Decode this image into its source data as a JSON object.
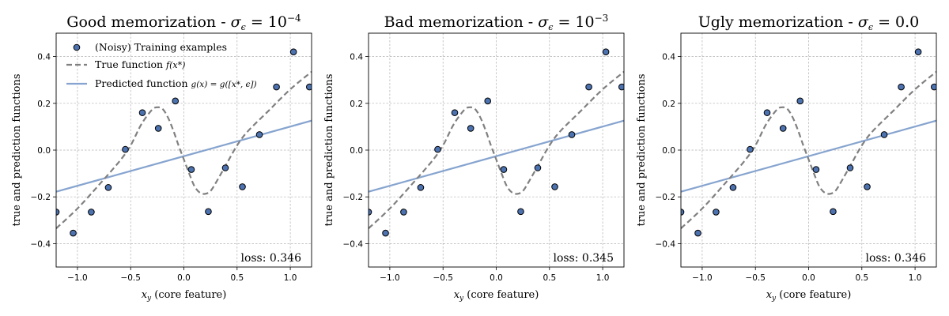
{
  "chart_data": [
    {
      "type": "scatter",
      "title": "Good memorization - ",
      "title_math": "σ",
      "title_math_sub": "ϵ",
      "title_math_rest": " = 10",
      "title_math_sup": "−4",
      "xlabel_math": "x",
      "xlabel_math_sub": "y",
      "xlabel": " (core feature)",
      "ylabel": "true and prediction functions",
      "xlim": [
        -1.2,
        1.2
      ],
      "ylim": [
        -0.5,
        0.5
      ],
      "xticks": [
        "−1.0",
        "−0.5",
        "0.0",
        "0.5",
        "1.0"
      ],
      "xtick_values": [
        -1.0,
        -0.5,
        0.0,
        0.5,
        1.0
      ],
      "yticks": [
        "−0.4",
        "−0.2",
        "0.0",
        "0.2",
        "0.4"
      ],
      "ytick_values": [
        -0.4,
        -0.2,
        0.0,
        0.2,
        0.4
      ],
      "loss_text": "loss: 0.346",
      "show_legend": true,
      "legend_position": "top-left",
      "grid": true,
      "training_points": [
        [
          -1.2,
          -0.265
        ],
        [
          -1.04,
          -0.355
        ],
        [
          -0.87,
          -0.265
        ],
        [
          -0.71,
          -0.16
        ],
        [
          -0.55,
          0.003
        ],
        [
          -0.39,
          0.16
        ],
        [
          -0.24,
          0.093
        ],
        [
          -0.08,
          0.21
        ],
        [
          0.07,
          -0.083
        ],
        [
          0.23,
          -0.263
        ],
        [
          0.39,
          -0.076
        ],
        [
          0.55,
          -0.157
        ],
        [
          0.71,
          0.066
        ],
        [
          0.87,
          0.27
        ],
        [
          1.03,
          0.42
        ],
        [
          1.18,
          0.27
        ]
      ],
      "true_function_samples": [
        [
          -1.2,
          -0.335
        ],
        [
          -1.0,
          -0.25
        ],
        [
          -0.8,
          -0.15
        ],
        [
          -0.6,
          -0.045
        ],
        [
          -0.5,
          0.02
        ],
        [
          -0.4,
          0.11
        ],
        [
          -0.3,
          0.172
        ],
        [
          -0.25,
          0.183
        ],
        [
          -0.2,
          0.176
        ],
        [
          -0.15,
          0.14
        ],
        [
          -0.1,
          0.085
        ],
        [
          -0.05,
          0.02
        ],
        [
          0.0,
          -0.04
        ],
        [
          0.05,
          -0.1
        ],
        [
          0.1,
          -0.155
        ],
        [
          0.15,
          -0.182
        ],
        [
          0.2,
          -0.187
        ],
        [
          0.25,
          -0.175
        ],
        [
          0.3,
          -0.14
        ],
        [
          0.4,
          -0.06
        ],
        [
          0.5,
          0.02
        ],
        [
          0.6,
          0.08
        ],
        [
          0.8,
          0.17
        ],
        [
          1.0,
          0.26
        ],
        [
          1.2,
          0.335
        ]
      ],
      "predicted_line": {
        "x": [
          -1.2,
          1.2
        ],
        "y": [
          -0.178,
          0.126
        ]
      }
    },
    {
      "type": "scatter",
      "title": "Bad memorization - ",
      "title_math": "σ",
      "title_math_sub": "ϵ",
      "title_math_rest": " = 10",
      "title_math_sup": "−3",
      "xlabel_math": "x",
      "xlabel_math_sub": "y",
      "xlabel": " (core feature)",
      "ylabel": "true and prediction functions",
      "xlim": [
        -1.2,
        1.2
      ],
      "ylim": [
        -0.5,
        0.5
      ],
      "xticks": [
        "−1.0",
        "−0.5",
        "0.0",
        "0.5",
        "1.0"
      ],
      "xtick_values": [
        -1.0,
        -0.5,
        0.0,
        0.5,
        1.0
      ],
      "yticks": [
        "−0.4",
        "−0.2",
        "0.0",
        "0.2",
        "0.4"
      ],
      "ytick_values": [
        -0.4,
        -0.2,
        0.0,
        0.2,
        0.4
      ],
      "loss_text": "loss: 0.345",
      "show_legend": false,
      "grid": true,
      "training_points": [
        [
          -1.2,
          -0.265
        ],
        [
          -1.04,
          -0.355
        ],
        [
          -0.87,
          -0.265
        ],
        [
          -0.71,
          -0.16
        ],
        [
          -0.55,
          0.003
        ],
        [
          -0.39,
          0.16
        ],
        [
          -0.24,
          0.093
        ],
        [
          -0.08,
          0.21
        ],
        [
          0.07,
          -0.083
        ],
        [
          0.23,
          -0.263
        ],
        [
          0.39,
          -0.076
        ],
        [
          0.55,
          -0.157
        ],
        [
          0.71,
          0.066
        ],
        [
          0.87,
          0.27
        ],
        [
          1.03,
          0.42
        ],
        [
          1.18,
          0.27
        ]
      ],
      "true_function_samples": [
        [
          -1.2,
          -0.335
        ],
        [
          -1.0,
          -0.25
        ],
        [
          -0.8,
          -0.15
        ],
        [
          -0.6,
          -0.045
        ],
        [
          -0.5,
          0.02
        ],
        [
          -0.4,
          0.11
        ],
        [
          -0.3,
          0.172
        ],
        [
          -0.25,
          0.183
        ],
        [
          -0.2,
          0.176
        ],
        [
          -0.15,
          0.14
        ],
        [
          -0.1,
          0.085
        ],
        [
          -0.05,
          0.02
        ],
        [
          0.0,
          -0.04
        ],
        [
          0.05,
          -0.1
        ],
        [
          0.1,
          -0.155
        ],
        [
          0.15,
          -0.182
        ],
        [
          0.2,
          -0.187
        ],
        [
          0.25,
          -0.175
        ],
        [
          0.3,
          -0.14
        ],
        [
          0.4,
          -0.06
        ],
        [
          0.5,
          0.02
        ],
        [
          0.6,
          0.08
        ],
        [
          0.8,
          0.17
        ],
        [
          1.0,
          0.26
        ],
        [
          1.2,
          0.335
        ]
      ],
      "predicted_line": {
        "x": [
          -1.2,
          1.2
        ],
        "y": [
          -0.178,
          0.126
        ]
      }
    },
    {
      "type": "scatter",
      "title": "Ugly memorization - ",
      "title_math": "σ",
      "title_math_sub": "ϵ",
      "title_math_rest": " = 0.0",
      "title_math_sup": "",
      "xlabel_math": "x",
      "xlabel_math_sub": "y",
      "xlabel": " (core feature)",
      "ylabel": "true and prediction functions",
      "xlim": [
        -1.2,
        1.2
      ],
      "ylim": [
        -0.5,
        0.5
      ],
      "xticks": [
        "−1.0",
        "−0.5",
        "0.0",
        "0.5",
        "1.0"
      ],
      "xtick_values": [
        -1.0,
        -0.5,
        0.0,
        0.5,
        1.0
      ],
      "yticks": [
        "−0.4",
        "−0.2",
        "0.0",
        "0.2",
        "0.4"
      ],
      "ytick_values": [
        -0.4,
        -0.2,
        0.0,
        0.2,
        0.4
      ],
      "loss_text": "loss: 0.346",
      "show_legend": false,
      "grid": true,
      "training_points": [
        [
          -1.2,
          -0.265
        ],
        [
          -1.04,
          -0.355
        ],
        [
          -0.87,
          -0.265
        ],
        [
          -0.71,
          -0.16
        ],
        [
          -0.55,
          0.003
        ],
        [
          -0.39,
          0.16
        ],
        [
          -0.24,
          0.093
        ],
        [
          -0.08,
          0.21
        ],
        [
          0.07,
          -0.083
        ],
        [
          0.23,
          -0.263
        ],
        [
          0.39,
          -0.076
        ],
        [
          0.55,
          -0.157
        ],
        [
          0.71,
          0.066
        ],
        [
          0.87,
          0.27
        ],
        [
          1.03,
          0.42
        ],
        [
          1.18,
          0.27
        ]
      ],
      "true_function_samples": [
        [
          -1.2,
          -0.335
        ],
        [
          -1.0,
          -0.25
        ],
        [
          -0.8,
          -0.15
        ],
        [
          -0.6,
          -0.045
        ],
        [
          -0.5,
          0.02
        ],
        [
          -0.4,
          0.11
        ],
        [
          -0.3,
          0.172
        ],
        [
          -0.25,
          0.183
        ],
        [
          -0.2,
          0.176
        ],
        [
          -0.15,
          0.14
        ],
        [
          -0.1,
          0.085
        ],
        [
          -0.05,
          0.02
        ],
        [
          0.0,
          -0.04
        ],
        [
          0.05,
          -0.1
        ],
        [
          0.1,
          -0.155
        ],
        [
          0.15,
          -0.182
        ],
        [
          0.2,
          -0.187
        ],
        [
          0.25,
          -0.175
        ],
        [
          0.3,
          -0.14
        ],
        [
          0.4,
          -0.06
        ],
        [
          0.5,
          0.02
        ],
        [
          0.6,
          0.08
        ],
        [
          0.8,
          0.17
        ],
        [
          1.0,
          0.26
        ],
        [
          1.2,
          0.335
        ]
      ],
      "predicted_line": {
        "x": [
          -1.2,
          1.2
        ],
        "y": [
          -0.178,
          0.126
        ]
      }
    }
  ],
  "legend": {
    "training_label": "(Noisy) Training examples",
    "true_label": "True function ",
    "true_math": "f(x*)",
    "pred_label": "Predicted function ",
    "pred_math": "g(x) = g([x*, ϵ])"
  },
  "colors": {
    "point_fill": "#4c72b0",
    "point_stroke": "#000000",
    "true_line": "#808080",
    "pred_line": "#86a4cf"
  }
}
